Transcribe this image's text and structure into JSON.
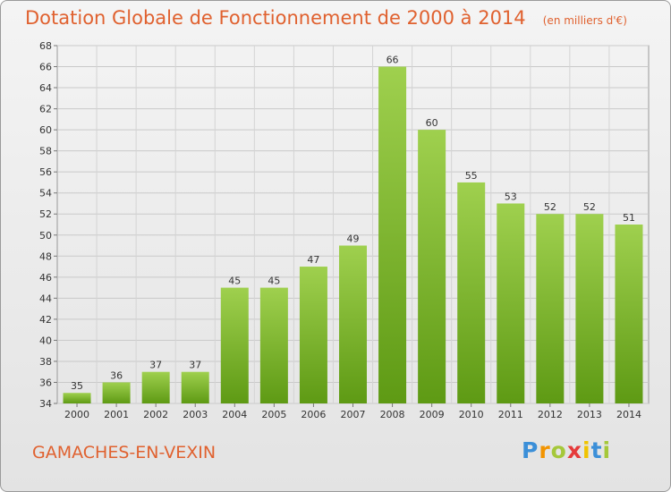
{
  "page": {
    "title": "Dotation Globale de Fonctionnement de 2000 à 2014",
    "unit": "(en milliers d'€)",
    "commune": "GAMACHES-EN-VEXIN",
    "logo": {
      "letters": [
        "P",
        "r",
        "o",
        "x",
        "i",
        "t",
        "i"
      ],
      "colors": [
        "#3b8fd8",
        "#f29400",
        "#a5c83a",
        "#e53a3a",
        "#f0c400",
        "#3b8fd8",
        "#a5c83a"
      ]
    }
  },
  "chart_data": {
    "type": "bar",
    "title": "Dotation Globale de Fonctionnement de 2000 à 2014",
    "categories": [
      "2000",
      "2001",
      "2002",
      "2003",
      "2004",
      "2005",
      "2006",
      "2007",
      "2008",
      "2009",
      "2010",
      "2011",
      "2012",
      "2013",
      "2014"
    ],
    "values": [
      35,
      36,
      37,
      37,
      45,
      45,
      47,
      49,
      66,
      60,
      55,
      53,
      52,
      52,
      51
    ],
    "ylim": [
      34,
      68
    ],
    "yticks": [
      34,
      36,
      38,
      40,
      42,
      44,
      46,
      48,
      50,
      52,
      54,
      56,
      58,
      60,
      62,
      64,
      66,
      68
    ],
    "grid": true,
    "bar_color_top": "#9fd04e",
    "bar_color_bottom": "#5e9a14"
  }
}
